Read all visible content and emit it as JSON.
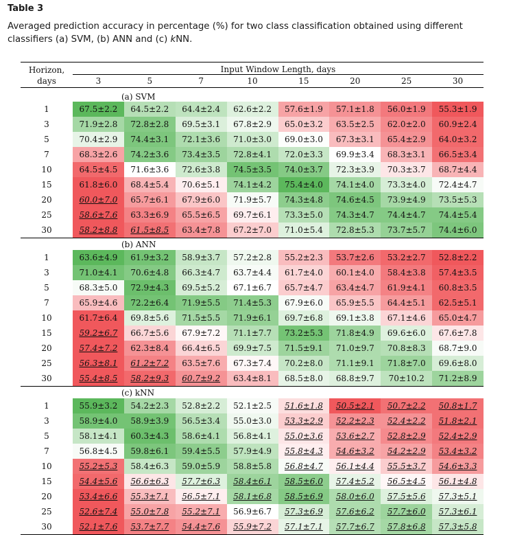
{
  "caption": {
    "label": "Table 3",
    "text_prefix": "Averaged prediction accuracy in percentage (%) for two class classification obtained using different classifiers (a) SVM, (b) ANN and (c) ",
    "text_italic": "k",
    "text_suffix": "NN."
  },
  "header": {
    "row_header_line1": "Horizon,",
    "row_header_line2": "days",
    "group_label": "Input Window Length, days",
    "columns": [
      "3",
      "5",
      "7",
      "10",
      "15",
      "20",
      "25",
      "30"
    ]
  },
  "colors": {
    "good": "#5cb85c",
    "neutral": "#ffffff",
    "bad": "#f0585c"
  },
  "sections": [
    {
      "label": "(a) SVM",
      "rows": [
        {
          "horizon": "1",
          "cells": [
            "67.5±2.2",
            "64.5±2.2",
            "64.4±2.4",
            "62.6±2.2",
            "57.6±1.9",
            "57.1±1.8",
            "56.0±1.9",
            "55.3±1.9"
          ],
          "shade": [
            1.0,
            0.45,
            0.4,
            0.2,
            -0.55,
            -0.65,
            -0.8,
            -1.0
          ],
          "styled": [
            0,
            0,
            0,
            0,
            0,
            0,
            0,
            0
          ]
        },
        {
          "horizon": "3",
          "cells": [
            "71.9±2.8",
            "72.8±2.8",
            "69.5±3.1",
            "67.8±2.9",
            "65.0±3.2",
            "63.5±2.5",
            "62.0±2.0",
            "60.9±2.4"
          ],
          "shade": [
            0.55,
            0.75,
            0.22,
            0.1,
            -0.3,
            -0.5,
            -0.7,
            -0.9
          ],
          "styled": [
            0,
            0,
            0,
            0,
            0,
            0,
            0,
            0
          ]
        },
        {
          "horizon": "5",
          "cells": [
            "70.4±2.9",
            "74.4±3.1",
            "72.1±3.6",
            "71.0±3.0",
            "69.0±3.0",
            "67.3±3.1",
            "65.4±2.9",
            "64.0±3.2"
          ],
          "shade": [
            0.15,
            0.8,
            0.5,
            0.3,
            0.02,
            -0.4,
            -0.65,
            -0.9
          ],
          "styled": [
            0,
            0,
            0,
            0,
            0,
            0,
            0,
            0
          ]
        },
        {
          "horizon": "7",
          "cells": [
            "68.3±2.6",
            "74.2±3.6",
            "73.4±3.5",
            "72.8±4.1",
            "72.0±3.3",
            "69.9±3.4",
            "68.3±3.1",
            "66.5±3.4"
          ],
          "shade": [
            -0.55,
            0.75,
            0.6,
            0.5,
            0.35,
            0.0,
            -0.45,
            -0.85
          ],
          "styled": [
            0,
            0,
            0,
            0,
            0,
            0,
            0,
            0
          ]
        },
        {
          "horizon": "10",
          "cells": [
            "64.5±4.5",
            "71.6±3.6",
            "72.6±3.8",
            "74.5±3.5",
            "74.0±3.7",
            "72.3±3.9",
            "70.3±3.7",
            "68.7±4.4"
          ],
          "shade": [
            -0.9,
            0.0,
            0.3,
            0.85,
            0.75,
            0.15,
            -0.15,
            -0.45
          ],
          "styled": [
            0,
            0,
            0,
            0,
            0,
            0,
            0,
            0
          ]
        },
        {
          "horizon": "15",
          "cells": [
            "61.8±6.0",
            "68.4±5.4",
            "70.6±5.1",
            "74.1±4.2",
            "75.4±4.0",
            "74.1±4.0",
            "73.3±4.0",
            "72.4±4.7"
          ],
          "shade": [
            -1.0,
            -0.45,
            -0.1,
            0.6,
            1.0,
            0.55,
            0.25,
            0.05
          ],
          "styled": [
            0,
            0,
            0,
            0,
            0,
            0,
            0,
            0
          ]
        },
        {
          "horizon": "20",
          "cells": [
            "60.0±7.0",
            "65.7±6.1",
            "67.9±6.0",
            "71.9±5.7",
            "74.3±4.8",
            "74.6±4.5",
            "73.9±4.9",
            "73.5±5.3"
          ],
          "shade": [
            -1.0,
            -0.6,
            -0.35,
            0.05,
            0.7,
            0.8,
            0.55,
            0.45
          ],
          "styled": [
            1,
            0,
            0,
            0,
            0,
            0,
            0,
            0
          ]
        },
        {
          "horizon": "25",
          "cells": [
            "58.6±7.6",
            "63.3±6.9",
            "65.5±6.5",
            "69.7±6.1",
            "73.3±5.0",
            "74.3±4.7",
            "74.4±4.7",
            "74.4±5.4"
          ],
          "shade": [
            -1.0,
            -0.75,
            -0.55,
            -0.1,
            0.45,
            0.75,
            0.75,
            0.75
          ],
          "styled": [
            1,
            0,
            0,
            0,
            0,
            0,
            0,
            0
          ]
        },
        {
          "horizon": "30",
          "cells": [
            "58.2±8.8",
            "61.5±8.5",
            "63.4±7.8",
            "67.2±7.0",
            "71.0±5.4",
            "72.8±5.3",
            "73.7±5.7",
            "74.4±6.0"
          ],
          "shade": [
            -1.0,
            -0.85,
            -0.65,
            -0.3,
            0.2,
            0.5,
            0.65,
            0.8
          ],
          "styled": [
            1,
            1,
            0,
            0,
            0,
            0,
            0,
            0
          ]
        }
      ]
    },
    {
      "label": "(b) ANN",
      "rows": [
        {
          "horizon": "1",
          "cells": [
            "63.6±4.9",
            "61.9±3.2",
            "58.9±3.7",
            "57.2±2.8",
            "55.2±2.3",
            "53.7±2.6",
            "53.2±2.7",
            "52.8±2.2"
          ],
          "shade": [
            1.0,
            0.85,
            0.35,
            0.1,
            -0.4,
            -0.8,
            -0.9,
            -1.0
          ],
          "styled": [
            0,
            0,
            0,
            0,
            0,
            0,
            0,
            0
          ]
        },
        {
          "horizon": "3",
          "cells": [
            "71.0±4.1",
            "70.6±4.8",
            "66.3±4.7",
            "63.7±4.4",
            "61.7±4.0",
            "60.1±4.0",
            "58.4±3.8",
            "57.4±3.5"
          ],
          "shade": [
            0.85,
            0.75,
            0.3,
            0.05,
            -0.25,
            -0.5,
            -0.8,
            -0.95
          ],
          "styled": [
            0,
            0,
            0,
            0,
            0,
            0,
            0,
            0
          ]
        },
        {
          "horizon": "5",
          "cells": [
            "68.3±5.0",
            "72.9±4.3",
            "69.5±5.2",
            "67.1±6.7",
            "65.7±4.7",
            "63.4±4.7",
            "61.9±4.1",
            "60.8±3.5"
          ],
          "shade": [
            0.05,
            0.9,
            0.25,
            0.0,
            -0.3,
            -0.55,
            -0.75,
            -0.9
          ],
          "styled": [
            0,
            0,
            0,
            0,
            0,
            0,
            0,
            0
          ]
        },
        {
          "horizon": "7",
          "cells": [
            "65.9±4.6",
            "72.2±6.4",
            "71.9±5.5",
            "71.4±5.3",
            "67.9±6.0",
            "65.9±5.5",
            "64.4±5.1",
            "62.5±5.1"
          ],
          "shade": [
            -0.4,
            0.85,
            0.75,
            0.7,
            0.05,
            -0.35,
            -0.6,
            -0.9
          ],
          "styled": [
            0,
            0,
            0,
            0,
            0,
            0,
            0,
            0
          ]
        },
        {
          "horizon": "10",
          "cells": [
            "61.7±6.4",
            "69.8±5.6",
            "71.5±5.5",
            "71.9±6.1",
            "69.7±6.8",
            "69.1±3.8",
            "67.1±4.6",
            "65.0±4.7"
          ],
          "shade": [
            -1.0,
            0.2,
            0.55,
            0.65,
            0.2,
            0.1,
            -0.25,
            -0.6
          ],
          "styled": [
            0,
            0,
            0,
            0,
            0,
            0,
            0,
            0
          ]
        },
        {
          "horizon": "15",
          "cells": [
            "59.2±6.7",
            "66.7±5.6",
            "67.9±7.2",
            "71.1±7.7",
            "73.2±5.3",
            "71.8±4.9",
            "69.6±6.0",
            "67.6±7.8"
          ],
          "shade": [
            -1.0,
            -0.25,
            -0.05,
            0.45,
            0.85,
            0.6,
            0.2,
            -0.15
          ],
          "styled": [
            1,
            0,
            0,
            0,
            0,
            0,
            0,
            0
          ]
        },
        {
          "horizon": "20",
          "cells": [
            "57.4±7.2",
            "62.3±8.4",
            "66.4±6.5",
            "69.9±7.5",
            "71.5±9.1",
            "71.0±9.7",
            "70.8±8.3",
            "68.7±9.0"
          ],
          "shade": [
            -1.0,
            -0.65,
            -0.25,
            0.3,
            0.6,
            0.5,
            0.45,
            0.05
          ],
          "styled": [
            1,
            0,
            0,
            0,
            0,
            0,
            0,
            0
          ]
        },
        {
          "horizon": "25",
          "cells": [
            "56.3±8.1",
            "61.2±7.2",
            "63.5±7.6",
            "67.3±7.4",
            "70.2±8.0",
            "71.1±9.1",
            "71.8±7.0",
            "69.6±8.0"
          ],
          "shade": [
            -1.0,
            -0.75,
            -0.5,
            -0.05,
            0.35,
            0.5,
            0.6,
            0.25
          ],
          "styled": [
            1,
            1,
            0,
            0,
            0,
            0,
            0,
            0
          ]
        },
        {
          "horizon": "30",
          "cells": [
            "55.4±8.5",
            "58.2±9.3",
            "60.7±9.2",
            "63.4±8.1",
            "68.5±8.0",
            "68.8±9.7",
            "70±10.2",
            "71.2±8.9"
          ],
          "shade": [
            -1.0,
            -0.9,
            -0.65,
            -0.4,
            0.15,
            0.2,
            0.4,
            0.6
          ],
          "styled": [
            1,
            1,
            1,
            0,
            0,
            0,
            0,
            0
          ]
        }
      ]
    },
    {
      "label": "(c) kNN",
      "rows": [
        {
          "horizon": "1",
          "cells": [
            "55.9±3.2",
            "54.2±2.3",
            "52.8±2.2",
            "52.1±2.5",
            "51.6±1.8",
            "50.5±2.1",
            "50.7±2.2",
            "50.8±1.7"
          ],
          "shade": [
            1.0,
            0.55,
            0.25,
            0.05,
            -0.2,
            -1.0,
            -0.85,
            -0.85
          ],
          "styled": [
            0,
            0,
            0,
            0,
            1,
            1,
            1,
            1
          ]
        },
        {
          "horizon": "3",
          "cells": [
            "58.9±4.0",
            "58.9±3.9",
            "56.5±3.4",
            "55.0±3.0",
            "53.3±2.9",
            "52.2±2.3",
            "52.4±2.2",
            "51.8±2.1"
          ],
          "shade": [
            0.85,
            0.85,
            0.45,
            0.1,
            -0.3,
            -0.65,
            -0.65,
            -0.85
          ],
          "styled": [
            0,
            0,
            0,
            0,
            1,
            1,
            1,
            1
          ]
        },
        {
          "horizon": "5",
          "cells": [
            "58.1±4.1",
            "60.3±4.3",
            "58.6±4.1",
            "56.8±4.1",
            "55.0±3.6",
            "53.6±2.7",
            "52.8±2.9",
            "52.4±2.9"
          ],
          "shade": [
            0.35,
            0.9,
            0.5,
            0.2,
            -0.15,
            -0.5,
            -0.7,
            -0.8
          ],
          "styled": [
            0,
            0,
            0,
            0,
            1,
            1,
            1,
            1
          ]
        },
        {
          "horizon": "7",
          "cells": [
            "56.8±4.5",
            "59.8±6.1",
            "59.4±5.5",
            "57.9±4.9",
            "55.8±4.3",
            "54.6±3.2",
            "54.2±2.9",
            "53.4±3.2"
          ],
          "shade": [
            0.05,
            0.8,
            0.7,
            0.4,
            -0.1,
            -0.5,
            -0.55,
            -0.75
          ],
          "styled": [
            0,
            0,
            0,
            0,
            1,
            1,
            1,
            1
          ]
        },
        {
          "horizon": "10",
          "cells": [
            "55.2±5.3",
            "58.4±6.3",
            "59.0±5.9",
            "58.8±5.8",
            "56.8±4.7",
            "56.1±4.4",
            "55.5±3.7",
            "54.6±3.3"
          ],
          "shade": [
            -0.85,
            0.35,
            0.6,
            0.5,
            0.05,
            -0.1,
            -0.3,
            -0.6
          ],
          "styled": [
            1,
            0,
            0,
            0,
            1,
            1,
            1,
            1
          ]
        },
        {
          "horizon": "15",
          "cells": [
            "54.4±5.6",
            "56.6±6.3",
            "57.7±6.3",
            "58.4±6.1",
            "58.5±6.0",
            "57.4±5.2",
            "56.5±4.5",
            "56.1±4.8"
          ],
          "shade": [
            -0.9,
            -0.15,
            0.2,
            0.6,
            0.7,
            0.15,
            -0.05,
            -0.15
          ],
          "styled": [
            1,
            1,
            1,
            1,
            1,
            1,
            1,
            1
          ]
        },
        {
          "horizon": "20",
          "cells": [
            "53.4±6.6",
            "55.3±7.1",
            "56.5±7.1",
            "58.1±6.8",
            "58.5±6.9",
            "58.0±6.0",
            "57.5±5.6",
            "57.3±5.1"
          ],
          "shade": [
            -1.0,
            -0.4,
            -0.1,
            0.55,
            0.75,
            0.5,
            0.2,
            0.1
          ],
          "styled": [
            1,
            1,
            1,
            1,
            1,
            1,
            1,
            1
          ]
        },
        {
          "horizon": "25",
          "cells": [
            "52.6±7.4",
            "55.0±7.8",
            "55.2±7.1",
            "56.9±6.7",
            "57.3±6.9",
            "57.6±6.2",
            "57.7±6.0",
            "57.3±6.1"
          ],
          "shade": [
            -1.0,
            -0.55,
            -0.5,
            0.0,
            0.25,
            0.5,
            0.6,
            0.25
          ],
          "styled": [
            1,
            1,
            1,
            0,
            1,
            1,
            1,
            1
          ]
        },
        {
          "horizon": "30",
          "cells": [
            "52.1±7.6",
            "53.7±7.7",
            "54.4±7.6",
            "55.9±7.2",
            "57.1±7.1",
            "57.7±6.7",
            "57.8±6.8",
            "57.3±5.8"
          ],
          "shade": [
            -1.0,
            -0.75,
            -0.65,
            -0.25,
            0.15,
            0.45,
            0.55,
            0.35
          ],
          "styled": [
            1,
            1,
            1,
            1,
            1,
            1,
            1,
            1
          ]
        }
      ]
    }
  ]
}
